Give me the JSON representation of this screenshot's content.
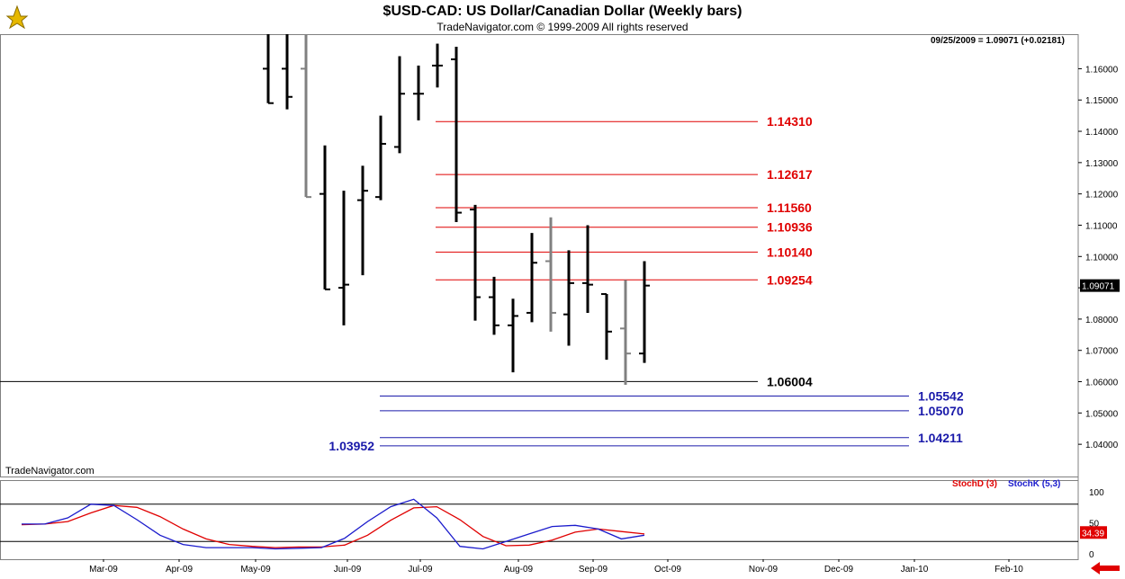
{
  "header": {
    "title": "$USD-CAD:  US Dollar/Canadian Dollar  (Weekly bars)",
    "subtitle": "TradeNavigator.com © 1999-2009 All rights reserved",
    "quote": "09/25/2009 = 1.09071 (+0.02181)",
    "watermark": "TradeNavigator.com"
  },
  "colors": {
    "bar_up": "#000000",
    "bar_gray": "#808080",
    "resistance": "#e00000",
    "support": "#1a1aaa",
    "stochD": "#e00000",
    "stochK": "#1a1acc"
  },
  "chart_data": [
    {
      "type": "ohlc",
      "title": "$USD-CAD:  US Dollar/Canadian Dollar  (Weekly bars)",
      "ylim": [
        1.032,
        1.1696
      ],
      "y_ticks": [
        "1.16000",
        "1.15000",
        "1.14000",
        "1.13000",
        "1.12000",
        "1.11000",
        "1.10000",
        "1.09000",
        "1.08000",
        "1.07000",
        "1.06000",
        "1.05000",
        "1.04000"
      ],
      "x_ticks": [
        "Mar-09",
        "Apr-09",
        "May-09",
        "Jun-09",
        "Jul-09",
        "Aug-09",
        "Sep-09",
        "Oct-09",
        "Nov-09",
        "Dec-09",
        "Jan-10",
        "Feb-10"
      ],
      "last_price_label": "1.09071",
      "bars": [
        {
          "week": 1,
          "high": 1.2,
          "low": 1.149,
          "open": 1.16,
          "close": 1.149,
          "color": "black"
        },
        {
          "week": 2,
          "high": 1.2,
          "low": 1.147,
          "open": 1.16,
          "close": 1.151,
          "color": "black"
        },
        {
          "week": 3,
          "high": 1.2,
          "low": 1.119,
          "open": 1.16,
          "close": 1.119,
          "color": "gray"
        },
        {
          "week": 4,
          "high": 1.1355,
          "low": 1.0895,
          "open": 1.12,
          "close": 1.0895,
          "color": "black"
        },
        {
          "week": 5,
          "high": 1.121,
          "low": 1.078,
          "open": 1.09,
          "close": 1.091,
          "color": "black"
        },
        {
          "week": 6,
          "high": 1.129,
          "low": 1.094,
          "open": 1.118,
          "close": 1.121,
          "color": "black"
        },
        {
          "week": 7,
          "high": 1.145,
          "low": 1.118,
          "open": 1.119,
          "close": 1.136,
          "color": "black"
        },
        {
          "week": 8,
          "high": 1.164,
          "low": 1.133,
          "open": 1.135,
          "close": 1.152,
          "color": "black"
        },
        {
          "week": 9,
          "high": 1.161,
          "low": 1.1435,
          "open": 1.152,
          "close": 1.152,
          "color": "black"
        },
        {
          "week": 10,
          "high": 1.168,
          "low": 1.154,
          "open": 1.161,
          "close": 1.161,
          "color": "black"
        },
        {
          "week": 11,
          "high": 1.167,
          "low": 1.111,
          "open": 1.163,
          "close": 1.114,
          "color": "black"
        },
        {
          "week": 12,
          "high": 1.1165,
          "low": 1.0795,
          "open": 1.115,
          "close": 1.087,
          "color": "black"
        },
        {
          "week": 13,
          "high": 1.0935,
          "low": 1.075,
          "open": 1.087,
          "close": 1.078,
          "color": "black"
        },
        {
          "week": 14,
          "high": 1.0865,
          "low": 1.063,
          "open": 1.078,
          "close": 1.081,
          "color": "black"
        },
        {
          "week": 15,
          "high": 1.1075,
          "low": 1.079,
          "open": 1.082,
          "close": 1.098,
          "color": "black"
        },
        {
          "week": 16,
          "high": 1.1125,
          "low": 1.076,
          "open": 1.0985,
          "close": 1.082,
          "color": "gray"
        },
        {
          "week": 17,
          "high": 1.102,
          "low": 1.0715,
          "open": 1.0815,
          "close": 1.0915,
          "color": "black"
        },
        {
          "week": 18,
          "high": 1.11,
          "low": 1.082,
          "open": 1.0915,
          "close": 1.091,
          "color": "black"
        },
        {
          "week": 19,
          "high": 1.088,
          "low": 1.067,
          "open": 1.088,
          "close": 1.076,
          "color": "black"
        },
        {
          "week": 20,
          "high": 1.0925,
          "low": 1.059,
          "open": 1.077,
          "close": 1.069,
          "color": "gray"
        },
        {
          "week": 21,
          "high": 1.0985,
          "low": 1.066,
          "open": 1.069,
          "close": 1.0907,
          "color": "black"
        }
      ],
      "levels": [
        {
          "value": 1.1431,
          "label": "1.14310",
          "kind": "resistance"
        },
        {
          "value": 1.12617,
          "label": "1.12617",
          "kind": "resistance"
        },
        {
          "value": 1.1156,
          "label": "1.11560",
          "kind": "resistance"
        },
        {
          "value": 1.10936,
          "label": "1.10936",
          "kind": "resistance"
        },
        {
          "value": 1.1014,
          "label": "1.10140",
          "kind": "resistance"
        },
        {
          "value": 1.09254,
          "label": "1.09254",
          "kind": "resistance"
        },
        {
          "value": 1.06004,
          "label": "1.06004",
          "kind": "pivot"
        },
        {
          "value": 1.05542,
          "label": "1.05542",
          "kind": "support"
        },
        {
          "value": 1.0507,
          "label": "1.05070",
          "kind": "support"
        },
        {
          "value": 1.04211,
          "label": "1.04211",
          "kind": "support"
        },
        {
          "value": 1.03952,
          "label": "1.03952",
          "kind": "support"
        }
      ]
    },
    {
      "type": "line",
      "series": [
        {
          "name": "StochD (3)",
          "values": [
            47,
            48,
            52,
            66,
            78,
            75,
            60,
            40,
            24,
            15,
            12,
            10,
            11,
            11,
            14,
            30,
            54,
            74,
            76,
            55,
            28,
            13,
            14,
            22,
            35,
            40,
            36,
            32
          ]
        },
        {
          "name": "StochK (5,3)",
          "values": [
            48,
            48,
            58,
            80,
            78,
            55,
            30,
            15,
            10,
            10,
            10,
            8,
            9,
            10,
            25,
            52,
            76,
            88,
            58,
            12,
            8,
            20,
            32,
            44,
            46,
            40,
            24,
            30
          ]
        }
      ],
      "ylim": [
        0,
        100
      ],
      "y_ticks": [
        "100",
        "50",
        "0"
      ],
      "reference_lines": [
        80,
        20
      ],
      "last_value_label": "34.39"
    }
  ]
}
